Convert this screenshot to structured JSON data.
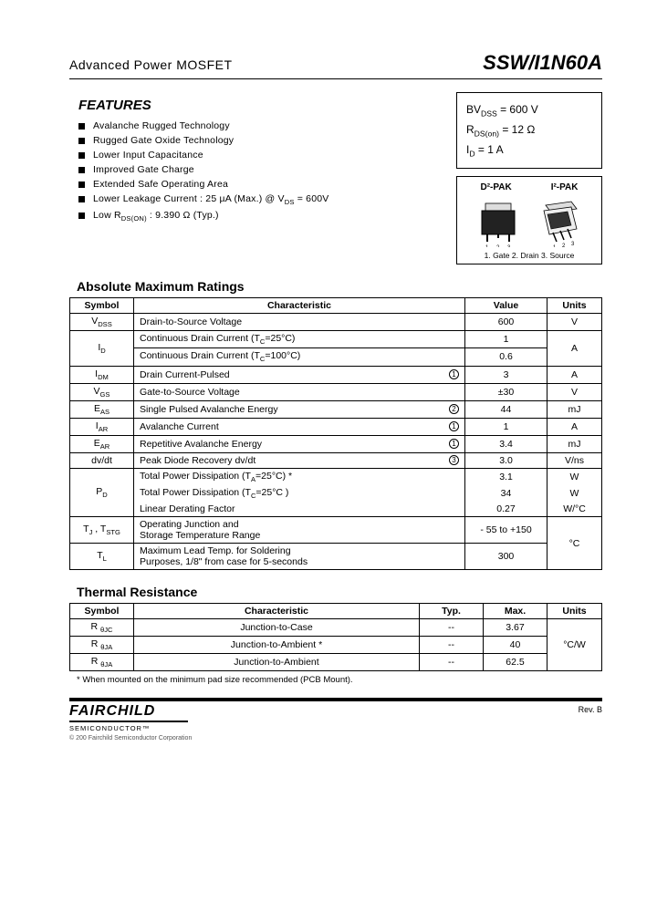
{
  "header": {
    "subtitle": "Advanced Power MOSFET",
    "part_number": "SSW/I1N60A"
  },
  "features": {
    "heading": "FEATURES",
    "items": [
      "Avalanche Rugged Technology",
      "Rugged Gate Oxide Technology",
      "Lower Input Capacitance",
      "Improved Gate Charge",
      "Extended Safe Operating Area",
      "Lower Leakage Current : 25 µA (Max.) @ V<sub>DS</sub> = 600V",
      "Low R<sub>DS(ON)</sub> : 9.390 Ω (Typ.)"
    ]
  },
  "spec_box": {
    "lines": [
      "BV<sub>DSS</sub> = 600 V",
      "R<sub>DS(on)</sub> = 12 Ω",
      "I<sub>D</sub> = 1 A"
    ]
  },
  "package": {
    "label_left": "D²-PAK",
    "label_right": "I²-PAK",
    "pins": "1. Gate  2. Drain  3. Source"
  },
  "ratings": {
    "heading": "Absolute Maximum Ratings",
    "columns": [
      "Symbol",
      "Characteristic",
      "Value",
      "Units"
    ],
    "rows": [
      {
        "sym": "V<sub>DSS</sub>",
        "char": "Drain-to-Source Voltage",
        "val": "600",
        "unit": "V"
      },
      {
        "sym": "I<sub>D</sub>",
        "rowspan_sym": 2,
        "char": "Continuous Drain Current (T<sub>C</sub>=25°C)",
        "val": "1",
        "unit": "A",
        "rowspan_unit": 2
      },
      {
        "char": "Continuous Drain Current (T<sub>C</sub>=100°C)",
        "val": "0.6"
      },
      {
        "sym": "I<sub>DM</sub>",
        "char": "Drain Current-Pulsed",
        "circ": "1",
        "val": "3",
        "unit": "A"
      },
      {
        "sym": "V<sub>GS</sub>",
        "char": "Gate-to-Source Voltage",
        "val": "±30",
        "unit": "V"
      },
      {
        "sym": "E<sub>AS</sub>",
        "char": "Single Pulsed Avalanche Energy",
        "circ": "2",
        "val": "44",
        "unit": "mJ"
      },
      {
        "sym": "I<sub>AR</sub>",
        "char": "Avalanche Current",
        "circ": "1",
        "val": "1",
        "unit": "A"
      },
      {
        "sym": "E<sub>AR</sub>",
        "char": "Repetitive Avalanche Energy",
        "circ": "1",
        "val": "3.4",
        "unit": "mJ"
      },
      {
        "sym": "dv/dt",
        "char": "Peak Diode Recovery dv/dt",
        "circ": "3",
        "val": "3.0",
        "unit": "V/ns"
      },
      {
        "sym": "P<sub>D</sub>",
        "rowspan_sym": 3,
        "char": "Total Power Dissipation (T<sub>A</sub>=25°C) *",
        "val": "3.1",
        "unit": "W"
      },
      {
        "char": "Total Power Dissipation (T<sub>C</sub>=25°C )",
        "val": "34",
        "unit": "W"
      },
      {
        "char": "Linear Derating Factor",
        "val": "0.27",
        "unit": "W/°C"
      },
      {
        "sym": "T<sub>J</sub> , T<sub>STG</sub>",
        "char": "Operating Junction and<br>Storage Temperature Range",
        "val": "- 55 to +150",
        "unit": "°C",
        "rowspan_unit": 2
      },
      {
        "sym": "T<sub>L</sub>",
        "char": "Maximum Lead Temp. for Soldering<br>Purposes, 1/8\" from case for 5-seconds",
        "val": "300"
      }
    ]
  },
  "thermal": {
    "heading": "Thermal Resistance",
    "columns": [
      "Symbol",
      "Characteristic",
      "Typ.",
      "Max.",
      "Units"
    ],
    "rows": [
      {
        "sym": "R <sub>θJC</sub>",
        "char": "Junction-to-Case",
        "typ": "--",
        "max": "3.67"
      },
      {
        "sym": "R <sub>θJA</sub>",
        "char": "Junction-to-Ambient *",
        "typ": "--",
        "max": "40"
      },
      {
        "sym": "R <sub>θJA</sub>",
        "char": "Junction-to-Ambient",
        "typ": "--",
        "max": "62.5"
      }
    ],
    "unit": "°C/W",
    "footnote": "* When mounted on the minimum pad size recommended (PCB Mount)."
  },
  "footer": {
    "brand": "FAIRCHILD",
    "brand_sub": "SEMICONDUCTOR™",
    "copyright": "© 200 Fairchild Semiconductor Corporation",
    "rev": "Rev. B"
  },
  "style": {
    "text_color": "#000000",
    "bg_color": "#ffffff",
    "border_color": "#000000"
  }
}
